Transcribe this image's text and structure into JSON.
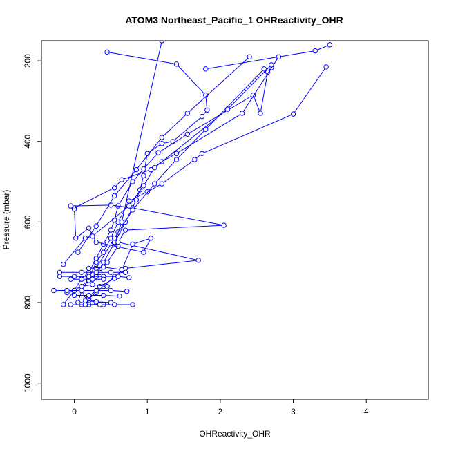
{
  "chart_data": {
    "type": "line",
    "title": "ATOM3 Northeast_Pacific_1 OHReactivity_OHR",
    "xlabel": "OHReactivity_OHR",
    "ylabel": "Pressure (mbar)",
    "xlim": [
      -0.45,
      4.85
    ],
    "ylim": [
      1040,
      150
    ],
    "y_reversed": true,
    "x_ticks": [
      "0",
      "1",
      "2",
      "3",
      "4"
    ],
    "y_ticks": [
      "200",
      "400",
      "600",
      "800",
      "1000"
    ],
    "grid": false,
    "series_color": "#0000ff",
    "marker": "open-circle",
    "series": [
      {
        "points": [
          [
            0.45,
            178
          ],
          [
            1.4,
            208
          ],
          [
            1.8,
            285
          ],
          [
            1.82,
            322
          ],
          [
            1.75,
            338
          ],
          [
            1.35,
            400
          ],
          [
            1.2,
            405
          ],
          [
            1.0,
            430
          ],
          [
            0.95,
            485
          ],
          [
            0.9,
            520
          ],
          [
            0.85,
            545
          ],
          [
            0.7,
            600
          ],
          [
            0.55,
            652
          ],
          [
            0.4,
            700
          ],
          [
            0.3,
            730
          ],
          [
            0.2,
            742
          ],
          [
            0.1,
            770
          ],
          [
            0.2,
            805
          ],
          [
            0.4,
            805
          ]
        ]
      },
      {
        "points": [
          [
            1.8,
            220
          ],
          [
            3.3,
            175
          ],
          [
            3.5,
            160
          ]
        ]
      },
      {
        "points": [
          [
            3.45,
            215
          ],
          [
            3.0,
            332
          ],
          [
            1.75,
            430
          ],
          [
            1.65,
            445
          ],
          [
            1.2,
            505
          ],
          [
            1.0,
            525
          ],
          [
            0.75,
            548
          ],
          [
            0.6,
            600
          ],
          [
            0.5,
            640
          ],
          [
            0.4,
            675
          ],
          [
            0.3,
            700
          ],
          [
            0.2,
            740
          ],
          [
            0.1,
            770
          ],
          [
            0.05,
            800
          ]
        ]
      },
      {
        "points": [
          [
            2.7,
            217
          ],
          [
            2.65,
            228
          ],
          [
            2.55,
            330
          ],
          [
            2.45,
            285
          ],
          [
            1.55,
            382
          ],
          [
            1.15,
            428
          ],
          [
            0.95,
            468
          ],
          [
            0.8,
            500
          ],
          [
            0.6,
            560
          ],
          [
            0.55,
            595
          ],
          [
            0.5,
            620
          ],
          [
            0.4,
            655
          ],
          [
            0.3,
            690
          ],
          [
            0.2,
            725
          ],
          [
            0.1,
            740
          ],
          [
            0.0,
            770
          ],
          [
            -0.15,
            805
          ]
        ]
      },
      {
        "points": [
          [
            1.2,
            150
          ],
          [
            0.65,
            600
          ],
          [
            0.6,
            625
          ],
          [
            0.55,
            650
          ],
          [
            0.6,
            660
          ],
          [
            0.45,
            700
          ],
          [
            0.35,
            725
          ],
          [
            0.3,
            735
          ],
          [
            0.2,
            745
          ],
          [
            0.0,
            770
          ],
          [
            -0.1,
            775
          ]
        ]
      },
      {
        "points": [
          [
            -0.05,
            560
          ],
          [
            0.5,
            558
          ],
          [
            0.8,
            565
          ],
          [
            2.05,
            608
          ],
          [
            0.7,
            620
          ],
          [
            0.6,
            650
          ],
          [
            1.7,
            695
          ],
          [
            0.7,
            715
          ],
          [
            0.55,
            735
          ],
          [
            0.4,
            760
          ],
          [
            0.3,
            775
          ],
          [
            0.2,
            790
          ],
          [
            0.1,
            805
          ]
        ]
      },
      {
        "points": [
          [
            0.0,
            565
          ],
          [
            0.55,
            515
          ],
          [
            0.65,
            495
          ],
          [
            1.05,
            470
          ],
          [
            1.2,
            450
          ],
          [
            1.4,
            430
          ],
          [
            2.3,
            330
          ],
          [
            2.8,
            190
          ]
        ]
      },
      {
        "points": [
          [
            -0.05,
            560
          ],
          [
            0.0,
            568
          ],
          [
            0.02,
            640
          ],
          [
            0.2,
            615
          ],
          [
            0.3,
            650
          ],
          [
            0.95,
            675
          ],
          [
            1.05,
            640
          ],
          [
            0.8,
            655
          ],
          [
            0.65,
            720
          ],
          [
            0.55,
            740
          ],
          [
            0.35,
            760
          ],
          [
            0.2,
            785
          ],
          [
            0.25,
            800
          ]
        ]
      },
      {
        "points": [
          [
            -0.15,
            705
          ],
          [
            0.15,
            640
          ],
          [
            0.25,
            635
          ],
          [
            0.75,
            560
          ],
          [
            0.95,
            510
          ],
          [
            1.1,
            465
          ],
          [
            2.1,
            320
          ],
          [
            2.7,
            210
          ]
        ]
      },
      {
        "points": [
          [
            0.05,
            675
          ],
          [
            0.3,
            610
          ],
          [
            0.55,
            535
          ],
          [
            0.85,
            470
          ],
          [
            1.2,
            390
          ],
          [
            1.55,
            330
          ],
          [
            2.4,
            190
          ]
        ]
      },
      {
        "points": [
          [
            0.3,
            715
          ],
          [
            0.55,
            640
          ],
          [
            0.8,
            570
          ],
          [
            1.1,
            505
          ],
          [
            1.4,
            445
          ],
          [
            1.8,
            370
          ],
          [
            2.6,
            220
          ]
        ]
      },
      {
        "points": [
          [
            -0.2,
            725
          ],
          [
            0.1,
            725
          ],
          [
            0.3,
            725
          ],
          [
            0.5,
            725
          ],
          [
            0.7,
            725
          ]
        ]
      },
      {
        "points": [
          [
            -0.2,
            735
          ],
          [
            0.0,
            735
          ],
          [
            0.2,
            735
          ],
          [
            0.4,
            735
          ],
          [
            0.6,
            735
          ],
          [
            0.75,
            738
          ]
        ]
      },
      {
        "points": [
          [
            -0.05,
            742
          ],
          [
            0.1,
            742
          ],
          [
            0.25,
            742
          ],
          [
            0.4,
            742
          ]
        ]
      },
      {
        "points": [
          [
            -0.28,
            770
          ],
          [
            -0.1,
            770
          ],
          [
            0.1,
            770
          ],
          [
            0.3,
            770
          ],
          [
            0.5,
            770
          ],
          [
            0.72,
            772
          ]
        ]
      },
      {
        "points": [
          [
            0.0,
            782
          ],
          [
            0.2,
            782
          ],
          [
            0.4,
            782
          ],
          [
            0.62,
            784
          ]
        ]
      },
      {
        "points": [
          [
            -0.05,
            805
          ],
          [
            0.15,
            805
          ],
          [
            0.35,
            805
          ],
          [
            0.55,
            805
          ],
          [
            0.8,
            805
          ]
        ]
      },
      {
        "points": [
          [
            0.1,
            760
          ],
          [
            0.25,
            755
          ],
          [
            0.45,
            760
          ]
        ]
      },
      {
        "points": [
          [
            0.15,
            795
          ],
          [
            0.3,
            798
          ],
          [
            0.5,
            800
          ]
        ]
      },
      {
        "points": [
          [
            0.2,
            715
          ],
          [
            0.4,
            712
          ],
          [
            0.65,
            718
          ]
        ]
      }
    ]
  }
}
